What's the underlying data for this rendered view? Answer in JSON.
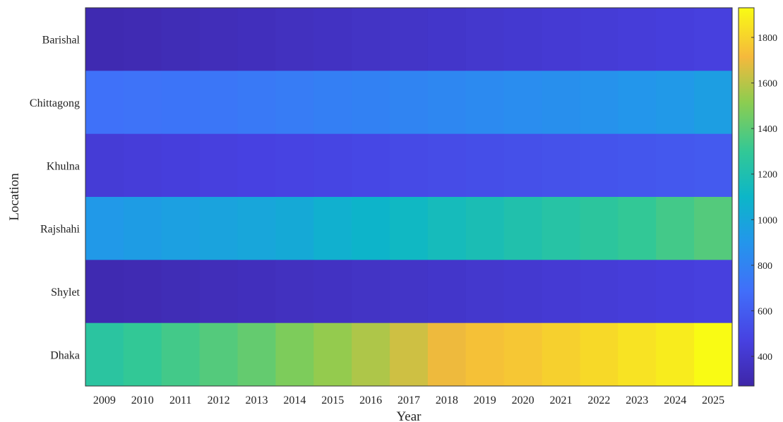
{
  "chart_data": {
    "type": "heatmap",
    "xlabel": "Year",
    "ylabel": "Location",
    "x": [
      "2009",
      "2010",
      "2011",
      "2012",
      "2013",
      "2014",
      "2015",
      "2016",
      "2017",
      "2018",
      "2019",
      "2020",
      "2021",
      "2022",
      "2023",
      "2024",
      "2025"
    ],
    "y": [
      "Barishal",
      "Chittagong",
      "Khulna",
      "Rajshahi",
      "Shylet",
      "Dhaka"
    ],
    "values": [
      [
        300,
        310,
        320,
        330,
        340,
        350,
        360,
        370,
        380,
        390,
        400,
        410,
        420,
        430,
        440,
        450,
        460
      ],
      [
        700,
        710,
        720,
        730,
        745,
        760,
        775,
        790,
        805,
        820,
        835,
        850,
        865,
        880,
        900,
        920,
        950
      ],
      [
        430,
        440,
        450,
        460,
        470,
        480,
        490,
        500,
        510,
        520,
        530,
        540,
        550,
        560,
        570,
        580,
        590
      ],
      [
        920,
        940,
        960,
        980,
        1000,
        1020,
        1060,
        1090,
        1120,
        1150,
        1180,
        1210,
        1240,
        1270,
        1300,
        1340,
        1380
      ],
      [
        300,
        310,
        320,
        330,
        340,
        350,
        360,
        370,
        380,
        390,
        400,
        410,
        420,
        430,
        440,
        450,
        460
      ],
      [
        1260,
        1300,
        1340,
        1380,
        1420,
        1480,
        1530,
        1580,
        1640,
        1700,
        1740,
        1760,
        1790,
        1820,
        1850,
        1880,
        1930
      ]
    ],
    "colorbar": {
      "ticks": [
        400,
        600,
        800,
        1000,
        1200,
        1400,
        1600,
        1800
      ],
      "range": [
        270,
        1930
      ],
      "colormap": "parula"
    },
    "grid": false,
    "legend": "colorbar right"
  }
}
